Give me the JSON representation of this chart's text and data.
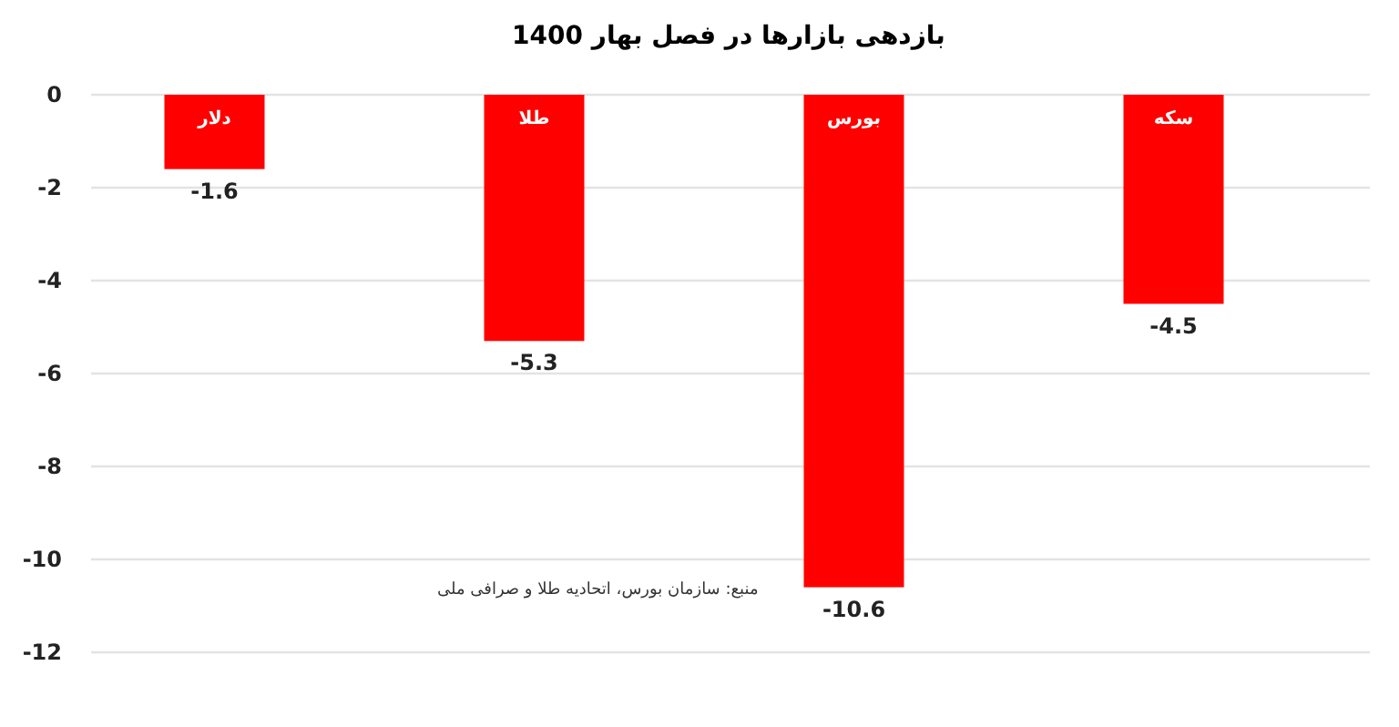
{
  "chart_data": {
    "type": "bar",
    "title": "بازدهی بازارها در فصل بهار 1400",
    "categories": [
      "دلار",
      "طلا",
      "بورس",
      "سکه"
    ],
    "values": [
      -1.6,
      -5.3,
      -10.6,
      -4.5
    ],
    "color": "#ff0000",
    "ylim": [
      -12,
      0
    ],
    "yticks": [
      -12,
      -10,
      -8,
      -6,
      -4,
      -2,
      0
    ],
    "grid": "y",
    "data_labels": true,
    "annotations": [
      "منبع: سازمان بورس، اتحادیه طلا و صرافی ملی"
    ]
  }
}
